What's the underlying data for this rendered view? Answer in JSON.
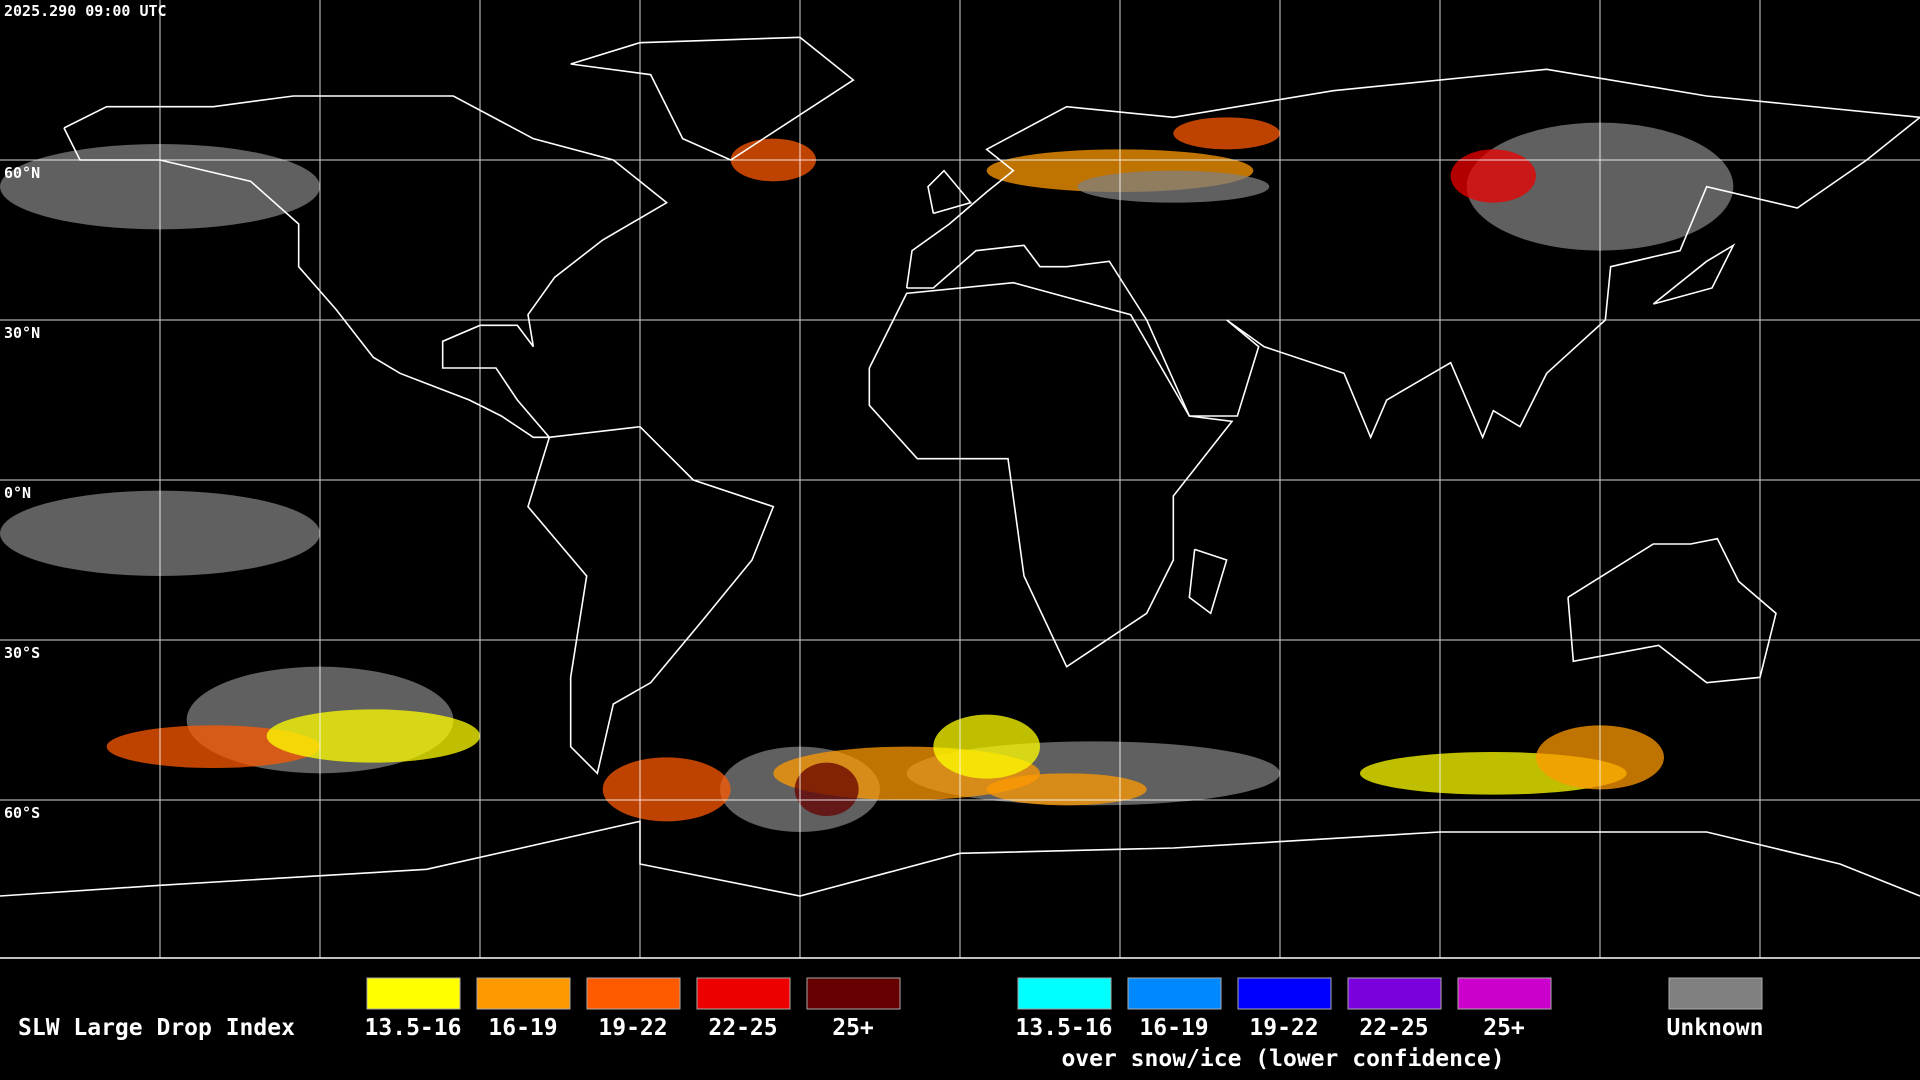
{
  "header": {
    "timestamp": "2025.290 09:00 UTC"
  },
  "latitude_labels": [
    "60°N",
    "30°N",
    "0°N",
    "30°S",
    "60°S"
  ],
  "legend": {
    "title": "SLW Large Drop Index",
    "items": [
      {
        "label": "13.5-16",
        "color": "#ffff00"
      },
      {
        "label": "16-19",
        "color": "#ff9900"
      },
      {
        "label": "19-22",
        "color": "#ff5a00"
      },
      {
        "label": "22-25",
        "color": "#ee0000"
      },
      {
        "label": "25+",
        "color": "#660000"
      }
    ],
    "snow_ice_items": [
      {
        "label": "13.5-16",
        "color": "#00ffff"
      },
      {
        "label": "16-19",
        "color": "#0088ff"
      },
      {
        "label": "19-22",
        "color": "#0000ff"
      },
      {
        "label": "22-25",
        "color": "#7a00dd"
      },
      {
        "label": "25+",
        "color": "#cc00cc"
      }
    ],
    "snow_ice_caption": "over snow/ice (lower confidence)",
    "unknown": {
      "label": "Unknown",
      "color": "#808080"
    }
  }
}
